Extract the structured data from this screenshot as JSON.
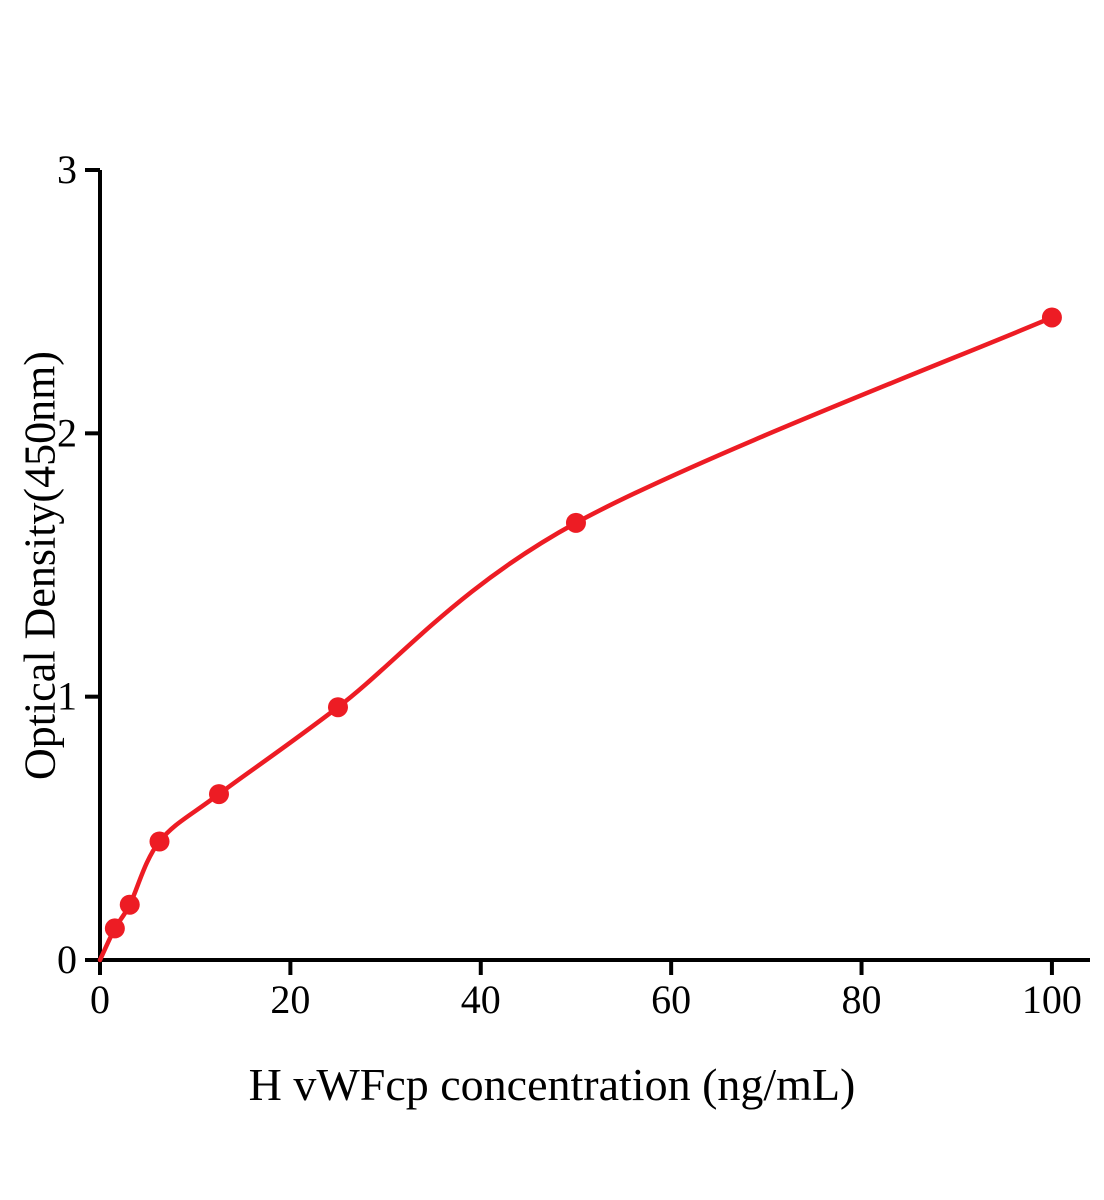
{
  "chart_data": {
    "type": "scatter",
    "title": "",
    "xlabel": "H vWFcp concentration (ng/mL)",
    "ylabel": "Optical Density(450nm)",
    "x": [
      1.56,
      3.125,
      6.25,
      12.5,
      25,
      50,
      100
    ],
    "y": [
      0.12,
      0.21,
      0.45,
      0.63,
      0.96,
      1.66,
      2.44
    ],
    "curve_start_x": 0,
    "curve_start_y": 0,
    "xlim": [
      0,
      104
    ],
    "ylim": [
      0,
      3
    ],
    "x_ticks": [
      0,
      20,
      40,
      60,
      80,
      100
    ],
    "y_ticks": [
      0,
      1,
      2,
      3
    ],
    "grid": false,
    "legend_position": "none",
    "point_color": "#ed1c24",
    "curve_color": "#ed1c24",
    "axis_color": "#000000"
  }
}
